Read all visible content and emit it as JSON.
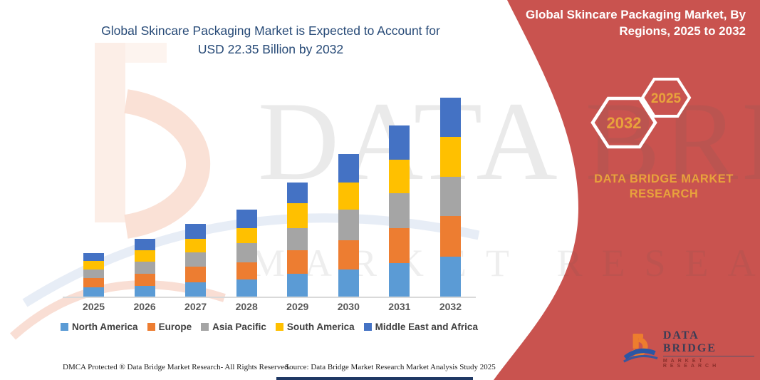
{
  "header": {
    "left_title_line1": "Global Skincare Packaging Market is Expected to Account for",
    "left_title_line2": "USD 22.35 Billion by 2032",
    "right_title_line1": "Global Skincare Packaging Market, By",
    "right_title_line2": "Regions, 2025 to 2032"
  },
  "side_panel": {
    "panel_color": "#C9534F",
    "gold_color": "#E8A23C",
    "hexagons": [
      {
        "label": "2032"
      },
      {
        "label": "2025"
      }
    ],
    "brand_line1": "DATA BRIDGE MARKET",
    "brand_line2": "RESEARCH"
  },
  "logo": {
    "name": "DATA BRIDGE",
    "subtitle": "MARKET RESEARCH"
  },
  "watermark": {
    "row1": "DATA BRIDGE",
    "row2": "MARKET RESEARCH"
  },
  "footer": {
    "dmca": "DMCA Protected ® Data Bridge Market Research-  All Rights Reserved.",
    "source": "Source: Data Bridge Market Research  Market Analysis Study 2025"
  },
  "chart_data": {
    "type": "bar",
    "stacked": true,
    "title": "Global Skincare Packaging Market, By Regions, 2025 to 2032",
    "unit": "USD Billion",
    "categories": [
      "2025",
      "2026",
      "2027",
      "2028",
      "2029",
      "2030",
      "2031",
      "2032"
    ],
    "series": [
      {
        "name": "North America",
        "color": "#5B9BD5",
        "values": [
          1.02,
          1.22,
          1.64,
          1.96,
          2.58,
          3.08,
          3.77,
          4.45
        ]
      },
      {
        "name": "Europe",
        "color": "#ED7D31",
        "values": [
          1.03,
          1.37,
          1.75,
          1.91,
          2.64,
          3.26,
          3.9,
          4.56
        ]
      },
      {
        "name": "Asia Pacific",
        "color": "#A5A5A5",
        "values": [
          1.0,
          1.35,
          1.56,
          2.1,
          2.49,
          3.43,
          3.9,
          4.46
        ]
      },
      {
        "name": "South America",
        "color": "#FFC000",
        "values": [
          0.96,
          1.3,
          1.51,
          1.75,
          2.8,
          3.07,
          3.78,
          4.45
        ]
      },
      {
        "name": "Middle East and Africa",
        "color": "#4472C4",
        "values": [
          0.88,
          1.25,
          1.71,
          2.05,
          2.31,
          3.18,
          3.87,
          4.43
        ]
      }
    ],
    "totals": [
      4.89,
      6.49,
      8.17,
      9.77,
      12.82,
      16.02,
      19.22,
      22.35
    ],
    "highlight_total_2032": "USD 22.35 Billion",
    "ylim": [
      0,
      24
    ],
    "grid": false,
    "y_axis_visible": false,
    "legend_position": "bottom"
  }
}
